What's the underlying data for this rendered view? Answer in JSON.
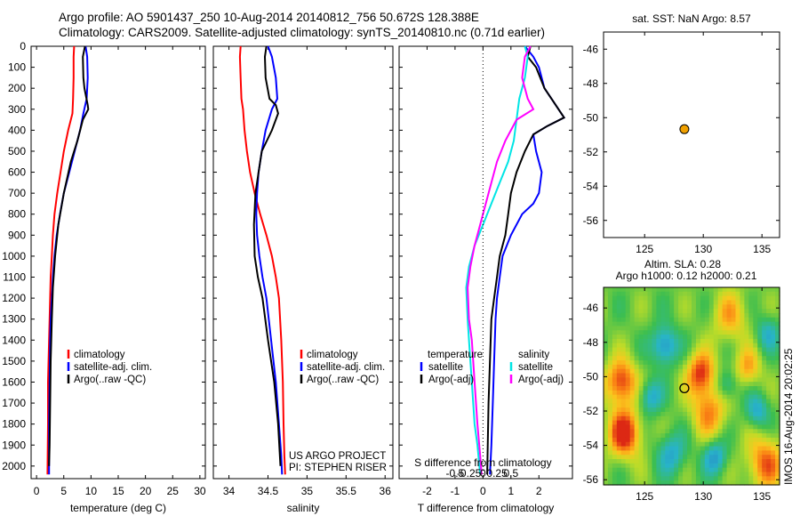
{
  "header": {
    "line1": "Argo profile: AO 5901437_250 10-Aug-2014 20140812_756 50.672S 128.388E",
    "line2": "Climatology: CARS2009. Satellite-adjusted climatology: synTS_20140810.nc (0.71d earlier)"
  },
  "stamp": "IMOS 16-Aug-2014 20:02:25",
  "colors": {
    "climatology": "#ff0000",
    "satellite": "#0000ff",
    "argo": "#000000",
    "s_satellite": "#00e5e5",
    "s_argo": "#ff00ff",
    "marker": "#f0a000"
  },
  "chart_data": [
    {
      "id": "temperature",
      "type": "line",
      "xlabel": "temperature (deg C)",
      "ylabel": "",
      "xlim": [
        -1,
        31
      ],
      "ylim": [
        2060,
        0
      ],
      "xticks": [
        0,
        5,
        10,
        15,
        20,
        25,
        30
      ],
      "yticks": [
        0,
        100,
        200,
        300,
        400,
        500,
        600,
        700,
        800,
        900,
        1000,
        1100,
        1200,
        1300,
        1400,
        1500,
        1600,
        1700,
        1800,
        1900,
        2000
      ],
      "series": [
        {
          "name": "climatology",
          "color": "#ff0000",
          "x": [
            6.9,
            6.8,
            6.8,
            6.7,
            6.6,
            5.8,
            5.0,
            4.4,
            3.8,
            3.3,
            3.0,
            2.8,
            2.6,
            2.5,
            2.4,
            2.3,
            2.2,
            2.1,
            2.1,
            2.0
          ],
          "y": [
            0,
            50,
            150,
            250,
            320,
            400,
            500,
            600,
            700,
            800,
            900,
            1000,
            1100,
            1200,
            1300,
            1400,
            1500,
            1600,
            1800,
            2040
          ]
        },
        {
          "name": "satellite-adj. clim.",
          "color": "#0000ff",
          "x": [
            9.0,
            9.3,
            9.4,
            9.2,
            8.6,
            8.0,
            7.0,
            6.0,
            5.0,
            4.3,
            3.7,
            3.3,
            3.0,
            2.8,
            2.6,
            2.5,
            2.4,
            2.3,
            2.3
          ],
          "y": [
            0,
            50,
            150,
            250,
            320,
            400,
            500,
            600,
            700,
            800,
            900,
            1000,
            1100,
            1200,
            1300,
            1400,
            1600,
            1800,
            2040
          ]
        },
        {
          "name": "Argo(..raw -QC)",
          "color": "#000000",
          "x": [
            8.9,
            8.5,
            8.6,
            8.8,
            9.4,
            9.5,
            8.5,
            7.5,
            6.3,
            5.0,
            4.0,
            3.4,
            3.0,
            2.8,
            2.6,
            2.5,
            2.4,
            2.3
          ],
          "y": [
            0,
            50,
            150,
            200,
            280,
            300,
            350,
            450,
            550,
            700,
            850,
            1000,
            1150,
            1300,
            1500,
            1700,
            1900,
            2000
          ]
        }
      ],
      "legend": {
        "position": "lower-middle",
        "entries": [
          "climatology",
          "satellite-adj. clim.",
          "Argo(..raw -QC)"
        ]
      }
    },
    {
      "id": "salinity",
      "type": "line",
      "xlabel": "salinity",
      "ylabel": "",
      "xlim": [
        33.8,
        36.1
      ],
      "ylim": [
        2060,
        0
      ],
      "xticks": [
        34,
        34.5,
        35,
        35.5,
        36
      ],
      "series": [
        {
          "name": "climatology",
          "color": "#ff0000",
          "x": [
            34.15,
            34.14,
            34.15,
            34.16,
            34.18,
            34.2,
            34.23,
            34.27,
            34.33,
            34.4,
            34.48,
            34.55,
            34.6,
            34.64,
            34.67,
            34.69,
            34.7,
            34.71,
            34.72
          ],
          "y": [
            0,
            50,
            150,
            250,
            300,
            400,
            500,
            600,
            700,
            800,
            900,
            1000,
            1100,
            1200,
            1400,
            1600,
            1800,
            1950,
            2040
          ]
        },
        {
          "name": "satellite-adj. clim.",
          "color": "#0000ff",
          "x": [
            34.5,
            34.55,
            34.6,
            34.62,
            34.55,
            34.47,
            34.42,
            34.38,
            34.36,
            34.35,
            34.36,
            34.39,
            34.43,
            34.48,
            34.54,
            34.6,
            34.64,
            34.67,
            34.68
          ],
          "y": [
            0,
            50,
            150,
            250,
            300,
            400,
            500,
            600,
            700,
            800,
            900,
            1000,
            1100,
            1200,
            1400,
            1600,
            1800,
            1950,
            2040
          ]
        },
        {
          "name": "Argo(..raw -QC)",
          "color": "#000000",
          "x": [
            34.48,
            34.46,
            34.47,
            34.52,
            34.6,
            34.63,
            34.55,
            34.42,
            34.38,
            34.34,
            34.32,
            34.33,
            34.37,
            34.43,
            34.5,
            34.58,
            34.63,
            34.66
          ],
          "y": [
            0,
            50,
            150,
            250,
            280,
            320,
            400,
            500,
            600,
            700,
            850,
            1000,
            1100,
            1200,
            1400,
            1600,
            1800,
            2000
          ]
        }
      ],
      "legend": {
        "position": "lower-middle",
        "entries": [
          "climatology",
          "satellite-adj. clim.",
          "Argo(..raw -QC)"
        ]
      },
      "annotation": [
        "US ARGO PROJECT",
        "PI: STEPHEN RISER"
      ]
    },
    {
      "id": "differences",
      "type": "line",
      "xlabel": "T difference from climatology",
      "top_xlabel": "S difference from climatology",
      "xlim": [
        -3,
        3.2
      ],
      "ylim": [
        2060,
        0
      ],
      "xticks": [
        -2,
        -1,
        0,
        1,
        2
      ],
      "s_xticks": [
        "-0.5",
        "-0.25",
        "0",
        "0.25",
        "0.5"
      ],
      "series": [
        {
          "name": "temperature satellite",
          "color": "#0000ff",
          "x": [
            1.5,
            1.8,
            2.0,
            2.2,
            2.5,
            2.9,
            2.3,
            1.8,
            1.9,
            2.1,
            2.0,
            1.8,
            1.4,
            1.0,
            0.7,
            0.6,
            0.5,
            0.45,
            0.4,
            0.35,
            0.3,
            0.25
          ],
          "y": [
            0,
            50,
            100,
            200,
            260,
            340,
            380,
            420,
            500,
            600,
            700,
            750,
            800,
            900,
            1000,
            1100,
            1200,
            1300,
            1500,
            1700,
            1900,
            2040
          ]
        },
        {
          "name": "temperature Argo(-adj)",
          "color": "#000000",
          "x": [
            1.7,
            1.6,
            1.9,
            2.2,
            2.5,
            2.9,
            2.3,
            1.8,
            1.5,
            1.2,
            1.0,
            0.9,
            0.8,
            0.6,
            0.5,
            0.4,
            0.3,
            0.25,
            0.2,
            0.15
          ],
          "y": [
            0,
            50,
            100,
            200,
            260,
            340,
            380,
            420,
            500,
            600,
            700,
            800,
            900,
            1000,
            1100,
            1200,
            1300,
            1500,
            1700,
            2040
          ]
        },
        {
          "name": "salinity satellite",
          "color": "#00e5e5",
          "x": [
            1.5,
            1.6,
            1.5,
            1.3,
            1.2,
            1.1,
            0.9,
            0.6,
            0.3,
            0.0,
            -0.3,
            -0.5,
            -0.6,
            -0.55,
            -0.5,
            -0.4,
            -0.3,
            -0.2,
            -0.1
          ],
          "y": [
            0,
            50,
            150,
            250,
            350,
            450,
            550,
            650,
            750,
            850,
            950,
            1050,
            1150,
            1300,
            1400,
            1600,
            1800,
            1900,
            2040
          ]
        },
        {
          "name": "salinity Argo(-adj)",
          "color": "#ff00ff",
          "x": [
            1.7,
            1.5,
            1.4,
            1.6,
            1.8,
            1.2,
            0.8,
            0.5,
            0.3,
            0.1,
            -0.1,
            -0.3,
            -0.45,
            -0.55,
            -0.5,
            -0.4,
            -0.3,
            -0.2,
            -0.1,
            -0.05
          ],
          "y": [
            0,
            50,
            150,
            250,
            300,
            350,
            450,
            550,
            650,
            750,
            850,
            950,
            1050,
            1150,
            1300,
            1400,
            1600,
            1800,
            1950,
            2040
          ]
        }
      ],
      "legend": {
        "position": "bottom",
        "col1_title": "temperature",
        "col2_title": "salinity",
        "entries": [
          "satellite",
          "Argo(-adj)",
          "satellite",
          "Argo(-adj)"
        ]
      }
    },
    {
      "id": "sst-map",
      "type": "scatter",
      "title": "sat. SST: NaN Argo: 8.57",
      "xlim": [
        121.5,
        136.5
      ],
      "ylim": [
        -57,
        -45
      ],
      "xticks": [
        125,
        130,
        135
      ],
      "yticks": [
        -46,
        -48,
        -50,
        -52,
        -54,
        -56
      ],
      "points": [
        {
          "lon": 128.388,
          "lat": -50.672
        }
      ]
    },
    {
      "id": "sla-map",
      "type": "heatmap",
      "title_line1": "Altim. SLA: 0.28",
      "title_line2": "Argo h1000: 0.12 h2000: 0.21",
      "xlim": [
        121.5,
        136.5
      ],
      "ylim": [
        -56.3,
        -44.8
      ],
      "xticks": [
        125,
        130,
        135
      ],
      "yticks": [
        -46,
        -48,
        -50,
        -52,
        -54,
        -56
      ],
      "points": [
        {
          "lon": 128.388,
          "lat": -50.672
        }
      ],
      "blobs": [
        {
          "lon": 123,
          "lat": -50.3,
          "r": 1.3,
          "v": 1.0
        },
        {
          "lon": 123.3,
          "lat": -53.3,
          "r": 1.4,
          "v": 1.1
        },
        {
          "lon": 129.8,
          "lat": -49.8,
          "r": 1.2,
          "v": 0.95
        },
        {
          "lon": 130.5,
          "lat": -52,
          "r": 1.5,
          "v": 0.7
        },
        {
          "lon": 133.8,
          "lat": -49.5,
          "r": 1.1,
          "v": 0.6
        },
        {
          "lon": 132.3,
          "lat": -46.5,
          "r": 1.5,
          "v": 0.55
        },
        {
          "lon": 135.3,
          "lat": -55,
          "r": 1.6,
          "v": 0.8
        },
        {
          "lon": 126.7,
          "lat": -48.2,
          "r": 1.1,
          "v": -0.8
        },
        {
          "lon": 125.5,
          "lat": -51.2,
          "r": 1.0,
          "v": -0.6
        },
        {
          "lon": 127.3,
          "lat": -54.5,
          "r": 1.2,
          "v": -0.6
        },
        {
          "lon": 131,
          "lat": -54.7,
          "r": 1.0,
          "v": -0.7
        },
        {
          "lon": 132,
          "lat": -50.5,
          "r": 0.9,
          "v": -0.5
        },
        {
          "lon": 134.6,
          "lat": -52,
          "r": 1.0,
          "v": -0.6
        },
        {
          "lon": 135.5,
          "lat": -47.5,
          "r": 1.0,
          "v": -0.5
        }
      ]
    }
  ]
}
